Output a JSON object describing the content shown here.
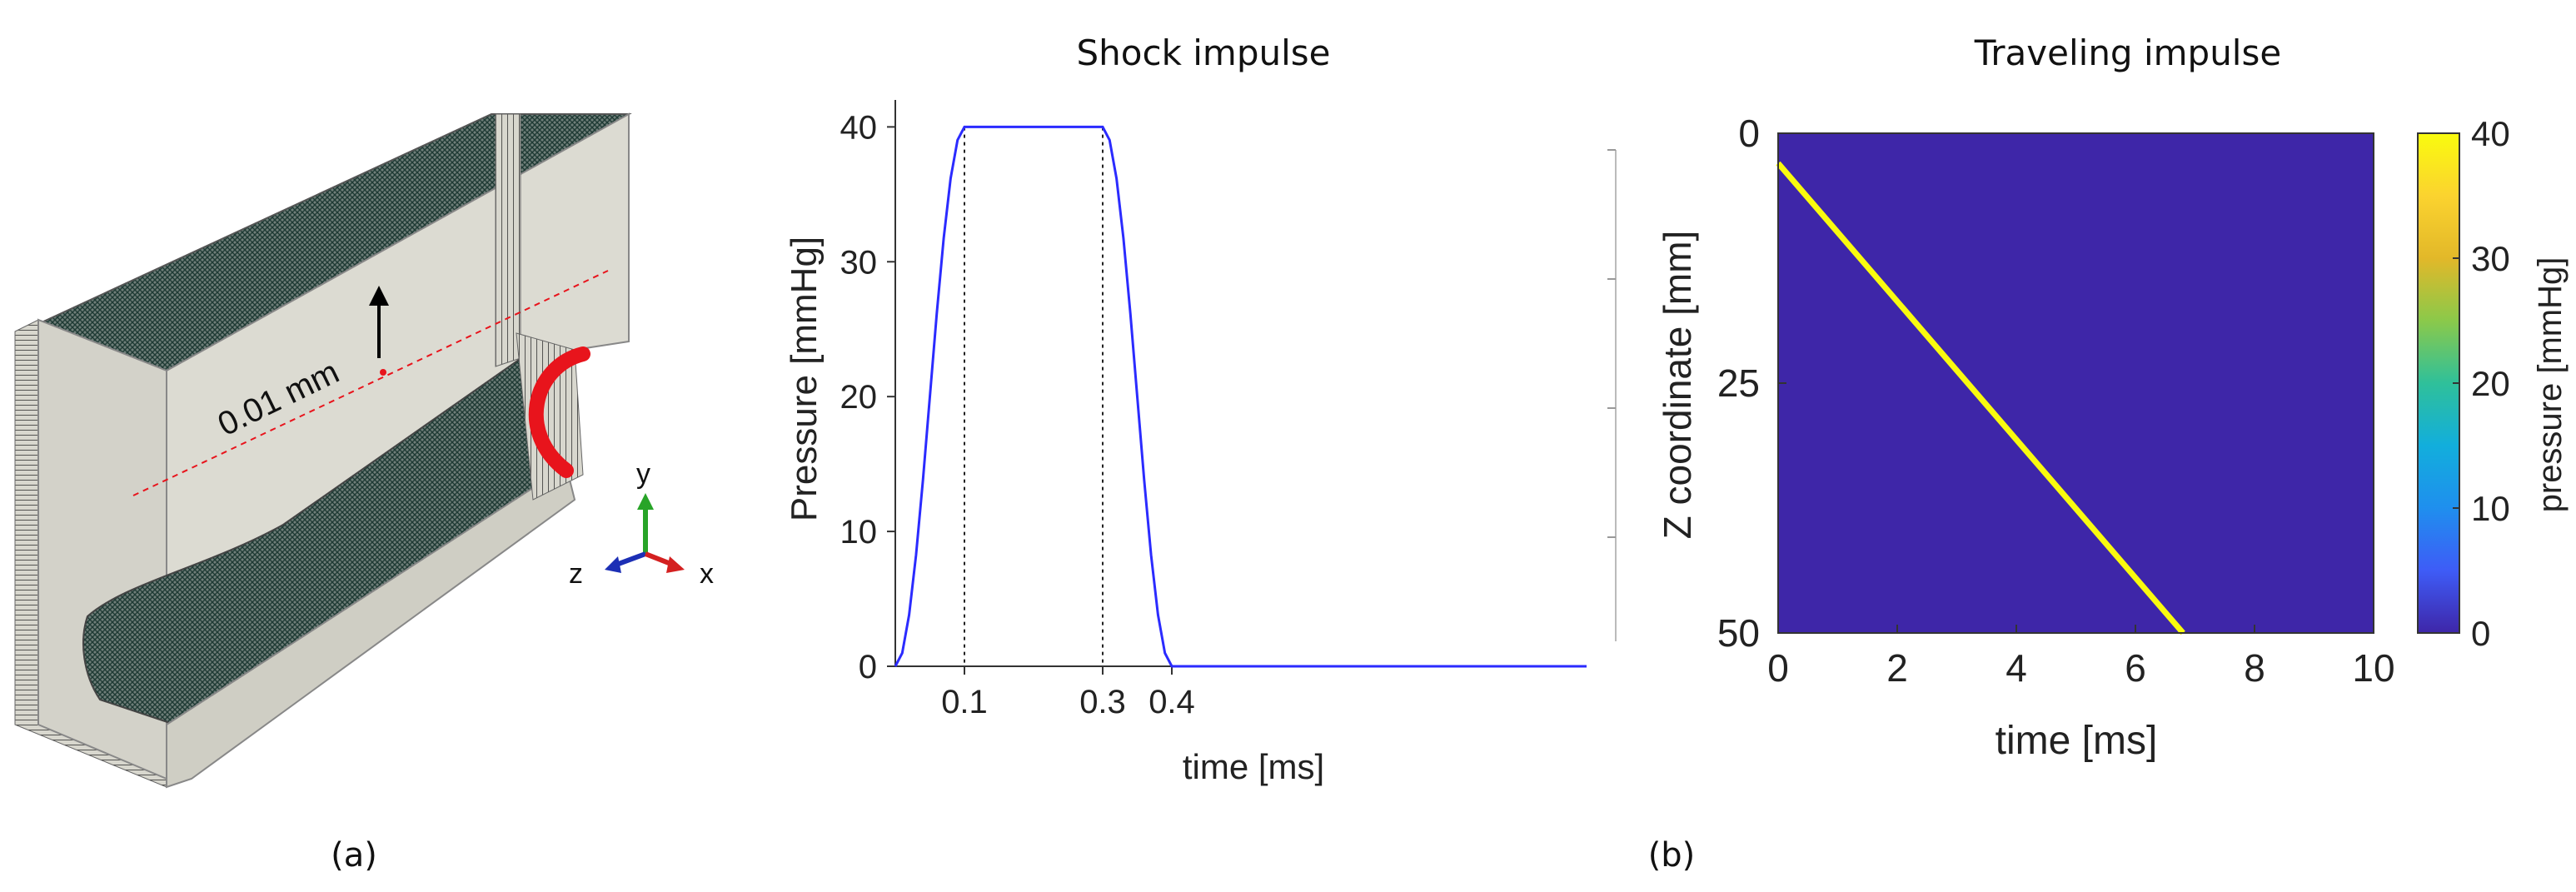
{
  "figure": {
    "panel_a_label": "(a)",
    "panel_b_label": "(b)"
  },
  "model3d": {
    "annotation": "0.01 mm",
    "axes": {
      "x": "x",
      "y": "y",
      "z": "z"
    },
    "axis_colors": {
      "x": "#d42020",
      "y": "#28a428",
      "z": "#1c2fb5"
    },
    "load_color": "#e8141c",
    "surface_color": "#dcdbd2",
    "mesh_color": "#1e3a34"
  },
  "chart_data": [
    {
      "type": "line",
      "title": "Shock impulse",
      "xlabel": "time [ms]",
      "ylabel": "Pressure [mmHg]",
      "xlim": [
        0,
        1.0
      ],
      "ylim": [
        0,
        42
      ],
      "xticks": [
        0.1,
        0.3,
        0.4
      ],
      "xtick_labels": [
        "0.1",
        "0.3",
        "0.4"
      ],
      "yticks": [
        0,
        10,
        20,
        30,
        40
      ],
      "ytick_labels": [
        "0",
        "10",
        "20",
        "30",
        "40"
      ],
      "line_color": "#2b2bff",
      "series": [
        {
          "name": "pressure",
          "x": [
            0,
            0.01,
            0.02,
            0.03,
            0.04,
            0.05,
            0.06,
            0.07,
            0.08,
            0.09,
            0.1,
            0.3,
            0.31,
            0.32,
            0.33,
            0.34,
            0.35,
            0.36,
            0.37,
            0.38,
            0.39,
            0.4,
            1.0
          ],
          "y": [
            0,
            0.98,
            3.82,
            8.25,
            13.82,
            20.0,
            26.18,
            31.75,
            36.18,
            39.02,
            40,
            40,
            39.02,
            36.18,
            31.75,
            26.18,
            20.0,
            13.82,
            8.25,
            3.82,
            0.98,
            0,
            0
          ]
        }
      ],
      "reference_lines_x": [
        0.1,
        0.3
      ]
    },
    {
      "type": "heatmap",
      "title": "Traveling impulse",
      "xlabel": "time [ms]",
      "ylabel": "Z coordinate [mm]",
      "xlim": [
        0,
        10
      ],
      "ylim": [
        0,
        50
      ],
      "y_reversed": true,
      "xticks": [
        0,
        2,
        4,
        6,
        8,
        10
      ],
      "xtick_labels": [
        "0",
        "2",
        "4",
        "6",
        "8",
        "10"
      ],
      "yticks": [
        0,
        25,
        50
      ],
      "ytick_labels": [
        "0",
        "25",
        "50"
      ],
      "background_value": 0,
      "front": {
        "value": 40,
        "start": [
          0,
          3
        ],
        "end": [
          6.8,
          50
        ]
      },
      "colorbar": {
        "label": "pressure [mmHg]",
        "range": [
          0,
          40
        ],
        "ticks": [
          0,
          10,
          20,
          30,
          40
        ],
        "tick_labels": [
          "0",
          "10",
          "20",
          "30",
          "40"
        ],
        "colormap": [
          "#3e26a8",
          "#3e5cf7",
          "#1f8fee",
          "#12aedc",
          "#2fc09a",
          "#8bc94a",
          "#e2b829",
          "#fbd32f",
          "#f9fb0e"
        ]
      }
    }
  ]
}
